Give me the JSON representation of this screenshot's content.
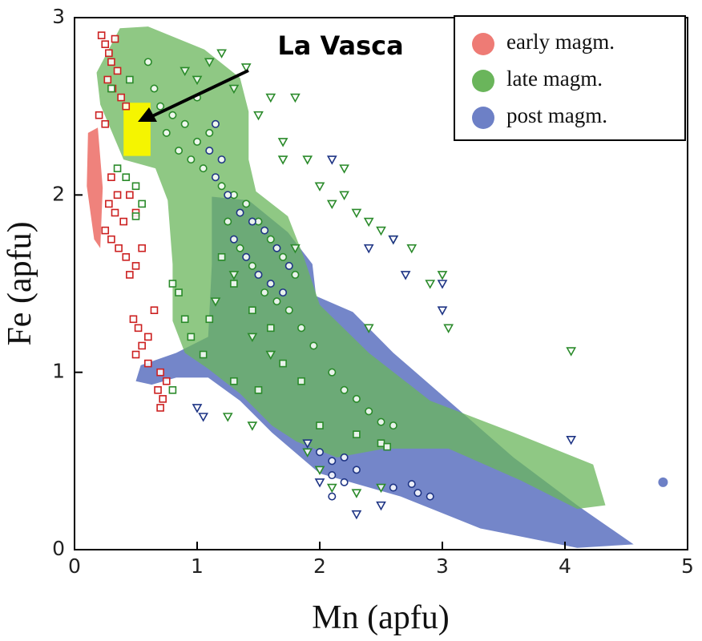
{
  "chart_data": {
    "type": "scatter",
    "annotation": "La Vasca",
    "highlight": {
      "x": [
        0.4,
        0.62
      ],
      "y": [
        2.22,
        2.52
      ],
      "color": "#f5f500"
    },
    "x_label": "Mn (apfu)",
    "y_label": "Fe (apfu)",
    "xlim": [
      0,
      5
    ],
    "ylim": [
      0,
      3
    ],
    "xticks": [
      0,
      1,
      2,
      3,
      4,
      5
    ],
    "yticks": [
      0,
      1,
      2,
      3
    ],
    "series": [
      {
        "name": "early magm.",
        "color": "#ee7b75",
        "edge": "#cc2020",
        "field": {
          "x": [
            0.11,
            0.19,
            0.23,
            0.21,
            0.16,
            0.1
          ],
          "y": [
            2.35,
            2.38,
            2.04,
            1.7,
            1.75,
            2.05
          ]
        },
        "groups": [
          {
            "marker": "square",
            "x": [
              0.22,
              0.25,
              0.28,
              0.3,
              0.33,
              0.35,
              0.27,
              0.31,
              0.38,
              0.42,
              0.2,
              0.25,
              0.3,
              0.35,
              0.28,
              0.33,
              0.4,
              0.25,
              0.3,
              0.36,
              0.42,
              0.5,
              0.45,
              0.55,
              0.48,
              0.52,
              0.6,
              0.55,
              0.65,
              0.5,
              0.6,
              0.7,
              0.75,
              0.68,
              0.72,
              0.7,
              0.45,
              0.5
            ],
            "y": [
              2.9,
              2.85,
              2.8,
              2.75,
              2.88,
              2.7,
              2.65,
              2.6,
              2.55,
              2.5,
              2.45,
              2.4,
              2.1,
              2.0,
              1.95,
              1.9,
              1.85,
              1.8,
              1.75,
              1.7,
              1.65,
              1.6,
              1.55,
              1.7,
              1.3,
              1.25,
              1.2,
              1.15,
              1.35,
              1.1,
              1.05,
              1.0,
              0.95,
              0.9,
              0.85,
              0.8,
              2.0,
              1.9
            ]
          }
        ]
      },
      {
        "name": "late magm.",
        "color": "#6ab55b",
        "edge": "#2a8a2a",
        "field": {
          "x": [
            0.37,
            0.6,
            1.06,
            1.35,
            1.42,
            1.42,
            1.48,
            1.74,
            1.87,
            2.0,
            2.4,
            2.9,
            3.58,
            4.23,
            4.33,
            4.1,
            3.64,
            3.05,
            2.53,
            2.14,
            1.81,
            1.61,
            1.35,
            1.09,
            0.9,
            0.8,
            0.8,
            0.76,
            0.66,
            0.4,
            0.21,
            0.18
          ],
          "y": [
            2.94,
            2.95,
            2.82,
            2.66,
            2.47,
            2.2,
            2.02,
            1.88,
            1.65,
            1.38,
            1.11,
            0.84,
            0.66,
            0.48,
            0.25,
            0.23,
            0.39,
            0.57,
            0.57,
            0.52,
            0.61,
            0.7,
            0.88,
            1.02,
            1.11,
            1.29,
            1.61,
            1.97,
            2.15,
            2.2,
            2.51,
            2.69
          ]
        },
        "groups": [
          {
            "marker": "square",
            "x": [
              0.35,
              0.42,
              0.5,
              0.55,
              0.5,
              0.8,
              0.85,
              0.9,
              0.95,
              1.05,
              0.8,
              1.2,
              1.3,
              1.45,
              1.6,
              1.7,
              1.85,
              1.3,
              1.5,
              2.0,
              2.3,
              2.5,
              2.55,
              1.1,
              0.3,
              0.45
            ],
            "y": [
              2.15,
              2.1,
              2.05,
              1.95,
              1.88,
              1.5,
              1.45,
              1.3,
              1.2,
              1.1,
              0.9,
              1.65,
              1.5,
              1.35,
              1.25,
              1.05,
              0.95,
              0.95,
              0.9,
              0.7,
              0.65,
              0.6,
              0.58,
              1.3,
              2.6,
              2.65
            ]
          },
          {
            "marker": "circle",
            "x": [
              0.7,
              0.8,
              0.9,
              1.0,
              1.1,
              0.75,
              0.85,
              0.95,
              1.05,
              1.2,
              1.3,
              1.4,
              1.5,
              1.6,
              1.7,
              1.8,
              1.25,
              1.35,
              1.45,
              1.55,
              1.65,
              1.75,
              1.85,
              1.95,
              2.1,
              2.2,
              2.3,
              2.4,
              2.5,
              2.6,
              0.6,
              0.65,
              1.0
            ],
            "y": [
              2.5,
              2.45,
              2.4,
              2.3,
              2.35,
              2.35,
              2.25,
              2.2,
              2.15,
              2.05,
              2.0,
              1.95,
              1.85,
              1.75,
              1.65,
              1.55,
              1.85,
              1.7,
              1.6,
              1.45,
              1.4,
              1.35,
              1.25,
              1.15,
              1.0,
              0.9,
              0.85,
              0.78,
              0.72,
              0.7,
              2.75,
              2.6,
              2.55
            ]
          },
          {
            "marker": "triangle",
            "x": [
              0.9,
              1.0,
              1.1,
              1.2,
              1.3,
              1.4,
              1.6,
              1.8,
              1.5,
              1.7,
              1.9,
              2.0,
              2.1,
              2.2,
              2.3,
              2.4,
              2.5,
              2.6,
              2.75,
              3.0,
              2.9,
              3.05,
              2.4,
              1.8,
              1.3,
              1.45,
              1.6,
              1.15,
              1.25,
              1.45,
              1.9,
              2.0,
              2.1,
              2.3,
              2.5,
              4.05,
              1.7,
              2.2
            ],
            "y": [
              2.7,
              2.65,
              2.75,
              2.8,
              2.6,
              2.72,
              2.55,
              2.55,
              2.45,
              2.3,
              2.2,
              2.05,
              1.95,
              2.0,
              1.9,
              1.85,
              1.8,
              1.75,
              1.7,
              1.55,
              1.5,
              1.25,
              1.25,
              1.7,
              1.55,
              1.2,
              1.1,
              1.4,
              0.75,
              0.7,
              0.55,
              0.45,
              0.35,
              0.32,
              0.35,
              1.12,
              2.2,
              2.15
            ]
          }
        ]
      },
      {
        "name": "post magm.",
        "color": "#6d80c6",
        "edge": "#1f3585",
        "field": {
          "x": [
            1.12,
            1.42,
            1.74,
            1.94,
            1.97,
            2.27,
            2.6,
            3.05,
            3.58,
            4.1,
            4.56,
            4.1,
            3.31,
            2.66,
            2.0,
            1.61,
            1.35,
            1.09,
            0.83,
            0.63,
            0.5,
            0.54,
            0.83,
            1.09,
            1.12
          ],
          "y": [
            1.99,
            1.97,
            1.79,
            1.61,
            1.43,
            1.34,
            1.11,
            0.84,
            0.52,
            0.25,
            0.03,
            0.01,
            0.12,
            0.3,
            0.43,
            0.66,
            0.84,
            0.97,
            0.97,
            0.93,
            0.95,
            1.04,
            1.11,
            1.2,
            1.61
          ]
        },
        "groups": [
          {
            "marker": "circle",
            "x": [
              1.15,
              1.1,
              1.2,
              1.15,
              1.25,
              1.35,
              1.45,
              1.55,
              1.65,
              1.75,
              1.3,
              1.4,
              1.5,
              1.6,
              1.7,
              2.0,
              2.1,
              2.2,
              2.3,
              2.1,
              2.2,
              2.75,
              2.8,
              2.9,
              2.6,
              2.1
            ],
            "y": [
              2.4,
              2.25,
              2.2,
              2.1,
              2.0,
              1.9,
              1.85,
              1.8,
              1.7,
              1.6,
              1.75,
              1.65,
              1.55,
              1.5,
              1.45,
              0.55,
              0.5,
              0.52,
              0.45,
              0.42,
              0.38,
              0.37,
              0.32,
              0.3,
              0.35,
              0.3
            ]
          },
          {
            "marker": "triangle",
            "x": [
              1.0,
              1.05,
              1.9,
              2.0,
              2.5,
              2.3,
              2.1,
              2.4,
              2.6,
              2.7,
              3.0,
              4.05,
              3.0
            ],
            "y": [
              0.8,
              0.75,
              0.6,
              0.38,
              0.25,
              0.2,
              2.2,
              1.7,
              1.75,
              1.55,
              1.5,
              0.62,
              1.35
            ]
          },
          {
            "marker": "dot",
            "x": [
              4.8
            ],
            "y": [
              0.38
            ]
          }
        ]
      }
    ]
  }
}
